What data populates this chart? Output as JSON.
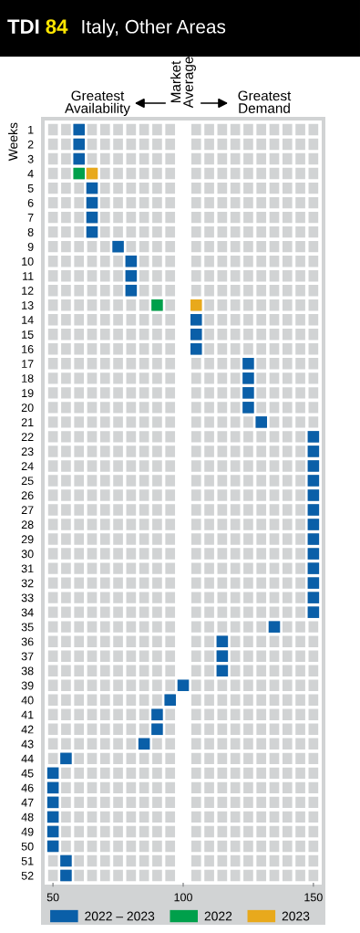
{
  "chart_data": {
    "type": "scatter",
    "orientation": "horizontal",
    "title": "TDI 84",
    "subtitle": "Italy, Other Areas",
    "ylabel": "Weeks",
    "annotations": [
      "Greatest\nAvailability",
      "Greatest\nDemand"
    ],
    "categories": [
      "1",
      "2",
      "3",
      "4",
      "5",
      "6",
      "7",
      "8",
      "9",
      "10",
      "11",
      "12",
      "13",
      "14",
      "15",
      "16",
      "17",
      "18",
      "19",
      "20",
      "21",
      "22",
      "23",
      "24",
      "25",
      "26",
      "27",
      "28",
      "29",
      "30",
      "31",
      "32",
      "33",
      "34",
      "35",
      "36",
      "37",
      "38",
      "39",
      "40",
      "41",
      "42",
      "43",
      "44",
      "45",
      "46",
      "47",
      "48",
      "49",
      "50",
      "51",
      "52"
    ],
    "series": [
      {
        "name": "2022 – 2023",
        "color": "#0a5fa8",
        "values": [
          60,
          60,
          60,
          null,
          65,
          65,
          65,
          65,
          75,
          80,
          80,
          80,
          null,
          105,
          105,
          105,
          125,
          125,
          125,
          125,
          130,
          150,
          150,
          150,
          150,
          150,
          150,
          150,
          150,
          150,
          150,
          150,
          150,
          150,
          135,
          115,
          115,
          115,
          100,
          95,
          90,
          90,
          85,
          55,
          50,
          50,
          50,
          50,
          50,
          50,
          55,
          55
        ]
      },
      {
        "name": "2022",
        "color": "#00a04b",
        "values": [
          null,
          null,
          null,
          60,
          null,
          null,
          null,
          null,
          null,
          null,
          null,
          null,
          90,
          null,
          null,
          null,
          null,
          null,
          null,
          null,
          null,
          null,
          null,
          null,
          null,
          null,
          null,
          null,
          null,
          null,
          null,
          null,
          null,
          null,
          null,
          null,
          null,
          null,
          null,
          null,
          null,
          null,
          null,
          null,
          null,
          null,
          null,
          null,
          null,
          null,
          null,
          null
        ]
      },
      {
        "name": "2023",
        "color": "#e8a91c",
        "values": [
          null,
          null,
          null,
          65,
          null,
          null,
          null,
          null,
          null,
          null,
          null,
          null,
          105,
          null,
          null,
          null,
          null,
          null,
          null,
          null,
          null,
          null,
          null,
          null,
          null,
          null,
          null,
          null,
          null,
          null,
          null,
          null,
          null,
          null,
          null,
          null,
          null,
          null,
          null,
          null,
          null,
          null,
          null,
          null,
          null,
          null,
          null,
          null,
          null,
          null,
          null,
          null
        ]
      }
    ],
    "xlim": [
      47.5,
      152.5
    ],
    "xticks": [
      50,
      100,
      150
    ],
    "bands": [
      {
        "axis": "x",
        "from": 97.5,
        "to": 102.5,
        "label": "Market\nAverage",
        "color": "#ffffff"
      }
    ],
    "grid": true,
    "legend": "bottom",
    "marker": "square"
  }
}
